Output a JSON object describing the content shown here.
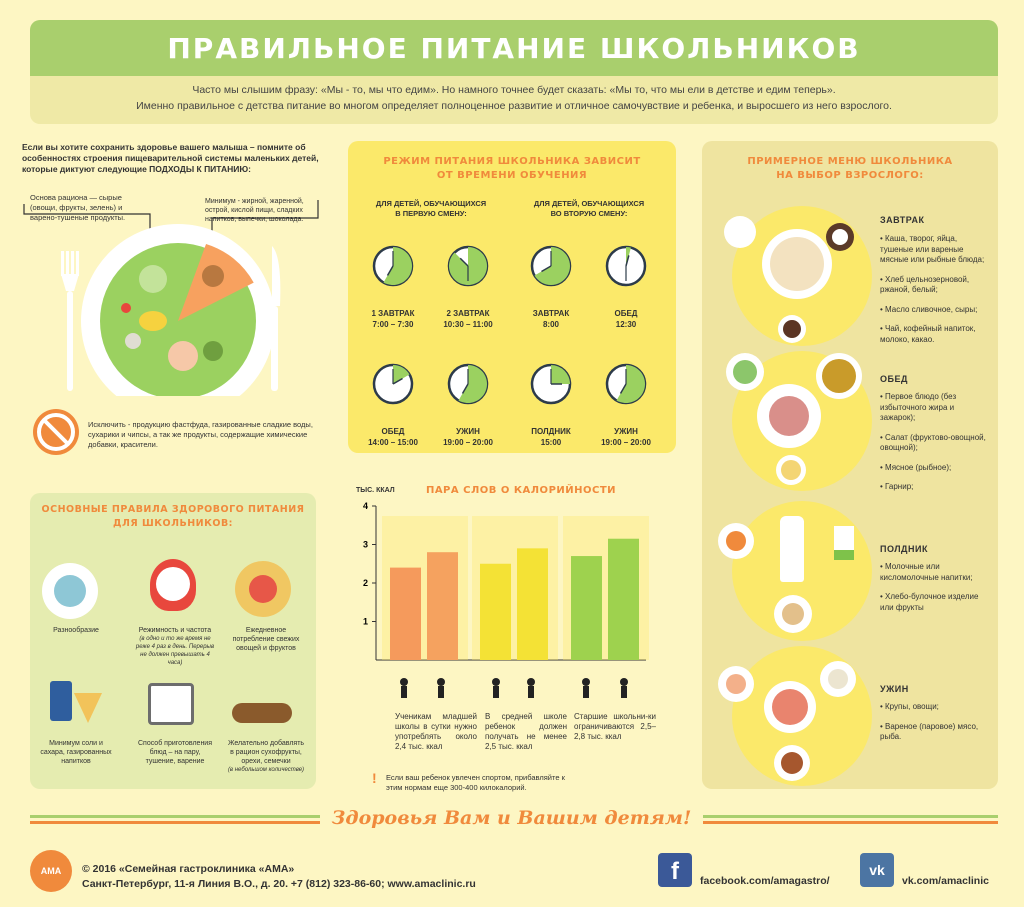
{
  "header": {
    "title": "ПРАВИЛЬНОЕ ПИТАНИЕ ШКОЛЬНИКОВ",
    "intro_line1": "Часто мы слышим фразу: «Мы  - то, мы что едим». Но намного точнее будет сказать: «Мы то, что мы ели в детстве и едим теперь».",
    "intro_line2": "Именно правильное с детства питание во многом определяет полноценное развитие и отличное самочувствие и ребенка, и выросшего из него взрослого."
  },
  "plate": {
    "intro": "Если вы хотите сохранить здоровье вашего малыша – помните об особенностях строения пищеварительной системы маленьких детей, которые диктуют следующие ПОДХОДЫ К ПИТАНИЮ:",
    "left_note": "Основа рациона — сырые (овощи, фрукты, зелень) и варено-тушеные продукты.",
    "right_note": "Минимум - жирной, жаренной, острой, кислой пищи, сладких напитков, выпечки, шоколада.",
    "exclude_note": "Исключить - продукцию фастфуда, газированные сладкие воды, сухарики и чипсы, а так же продукты, содержащие химические добавки, красители."
  },
  "schedule": {
    "title_line1": "РЕЖИМ ПИТАНИЯ ШКОЛЬНИКА ЗАВИСИТ",
    "title_line2": "ОТ ВРЕМЕНИ ОБУЧЕНИЯ",
    "first_shift_line1": "ДЛЯ ДЕТЕЙ, ОБУЧАЮЩИХСЯ",
    "first_shift_line2": "В ПЕРВУЮ СМЕНУ:",
    "second_shift_line1": "ДЛЯ ДЕТЕЙ, ОБУЧАЮЩИХСЯ",
    "second_shift_line2": "ВО ВТОРУЮ СМЕНУ:",
    "meals": [
      {
        "name": "1 ЗАВТРАК",
        "time": "7:00 – 7:30"
      },
      {
        "name": "2 ЗАВТРАК",
        "time": "10:30 – 11:00"
      },
      {
        "name": "ЗАВТРАК",
        "time": "8:00"
      },
      {
        "name": "ОБЕД",
        "time": "12:30"
      },
      {
        "name": "ОБЕД",
        "time": "14:00 – 15:00"
      },
      {
        "name": "УЖИН",
        "time": "19:00 – 20:00"
      },
      {
        "name": "ПОЛДНИК",
        "time": "15:00"
      },
      {
        "name": "УЖИН",
        "time": "19:00 – 20:00"
      }
    ]
  },
  "menu": {
    "title_line1": "ПРИМЕРНОЕ МЕНЮ ШКОЛЬНИКА",
    "title_line2": "НА ВЫБОР ВЗРОСЛОГО:",
    "sections": [
      {
        "name": "ЗАВТРАК",
        "items": [
          "• Каша, творог, яйца, тушеные или вареные мясные или рыбные блюда;",
          "• Хлеб цельнозерновой, ржаной, белый;",
          "• Масло сливочное, сыры;",
          "• Чай, кофейный напиток, молоко, какао."
        ]
      },
      {
        "name": "ОБЕД",
        "items": [
          "• Первое блюдо (без избыточного жира и зажарок);",
          "• Салат (фруктово-овощной, овощной);",
          "• Мясное (рыбное);",
          "• Гарнир;"
        ]
      },
      {
        "name": "ПОЛДНИК",
        "items": [
          "• Молочные или кисломолочные напитки;",
          "• Хлебо-булочное изделие или фрукты"
        ]
      },
      {
        "name": "УЖИН",
        "items": [
          "• Крупы, овощи;",
          "• Вареное (паровое) мясо, рыба."
        ]
      }
    ]
  },
  "rules": {
    "title_line1": "ОСНОВНЫЕ ПРАВИЛА ЗДОРОВОГО  ПИТАНИЯ",
    "title_line2": "ДЛЯ ШКОЛЬНИКОВ:",
    "items": [
      {
        "label": "Разнообразие",
        "note": ""
      },
      {
        "label": "Режимность и частота",
        "note": "(в одно и то же время не реже 4 раз в день. Перерыв не должен превышать 4 часа)"
      },
      {
        "label": "Ежедневное потребление свежих овощей и фруктов",
        "note": ""
      },
      {
        "label": "Минимум соли и сахара, газированных напитков",
        "note": ""
      },
      {
        "label": "Способ приготовления блюд – на пару, тушение, варение",
        "note": ""
      },
      {
        "label": "Желательно добавлять в рацион сухофрукты, орехи, семечки",
        "note": "(в небольшом количестве)"
      }
    ]
  },
  "chart_data": {
    "type": "bar",
    "title": "ПАРА СЛОВ О КАЛОРИЙНОСТИ",
    "ylabel": "ТЫС. ККАЛ",
    "ylim": [
      0,
      4
    ],
    "yticks": [
      "1",
      "2",
      "3",
      "4"
    ],
    "groups": [
      {
        "color_low": "#f59a5c",
        "color_high": "#f5a25f",
        "values": [
          2.4,
          2.8
        ]
      },
      {
        "color_low": "#f4e235",
        "color_high": "#f4e235",
        "values": [
          2.5,
          2.9
        ]
      },
      {
        "color_low": "#9ed24e",
        "color_high": "#9ed24e",
        "values": [
          2.7,
          3.15
        ]
      }
    ],
    "notes": [
      "Ученикам младшей школы в сутки нужно употреблять около 2,4 тыс. ккал",
      "В средней школе ребенок должен получать не менее 2,5 тыс. ккал",
      "Старшие школьни-ки ограничиваются 2,5–2,8 тыс. ккал"
    ],
    "sport_note": "Если ваш ребенок увлечен спортом, прибавляйте к этим нормам еще 300-400 килокалорий.",
    "sport_mark": "!"
  },
  "slogan": "Здоровья Вам и Вашим детям!",
  "footer": {
    "logo_text": "АМА",
    "copyright": "© 2016 «Семейная гастроклиника «АМА»",
    "address": "Санкт-Петербург, 11-я Линия В.О., д. 20. +7 (812) 323-86-60;  www.amaclinic.ru",
    "facebook": "facebook.com/amagastro/",
    "vk": "vk.com/amaclinic",
    "fb_glyph": "f",
    "vk_glyph": "vk"
  },
  "colors": {
    "green": "#a9cf6d",
    "orange": "#f08a3c",
    "yellow": "#fbe96a",
    "blue": "#3b5998",
    "vk": "#4c75a3"
  }
}
